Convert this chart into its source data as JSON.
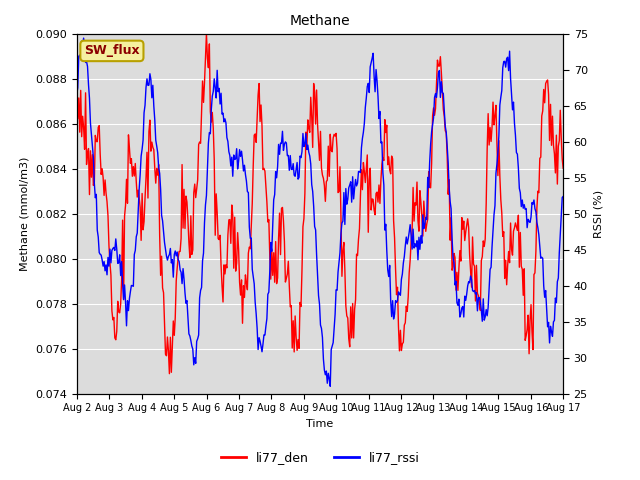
{
  "title": "Methane",
  "ylabel_left": "Methane (mmol/m3)",
  "ylabel_right": "RSSI (%)",
  "xlabel": "Time",
  "ylim_left": [
    0.074,
    0.09
  ],
  "ylim_right": [
    25,
    75
  ],
  "yticks_left": [
    0.074,
    0.076,
    0.078,
    0.08,
    0.082,
    0.084,
    0.086,
    0.088,
    0.09
  ],
  "yticks_right": [
    25,
    30,
    35,
    40,
    45,
    50,
    55,
    60,
    65,
    70,
    75
  ],
  "xtick_labels": [
    "Aug 2",
    "Aug 3",
    "Aug 4",
    "Aug 5",
    "Aug 6",
    "Aug 7",
    "Aug 8",
    "Aug 9",
    "Aug 10",
    "Aug 11",
    "Aug 12",
    "Aug 13",
    "Aug 14",
    "Aug 15",
    "Aug 16",
    "Aug 17"
  ],
  "legend_labels": [
    "li77_den",
    "li77_rssi"
  ],
  "legend_colors": [
    "red",
    "blue"
  ],
  "sw_flux_label": "SW_flux",
  "sw_flux_text_color": "#8b0000",
  "plot_bg_color": "#dcdcdc",
  "fig_bg_color": "#ffffff",
  "grid_color": "#ffffff",
  "line_color_red": "red",
  "line_color_blue": "blue",
  "linewidth": 1.0,
  "n_points": 500,
  "title_fontsize": 10,
  "label_fontsize": 8,
  "tick_fontsize": 8
}
